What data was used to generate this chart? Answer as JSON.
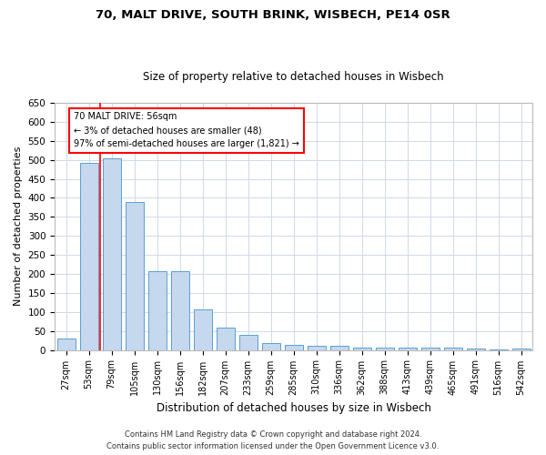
{
  "title_line1": "70, MALT DRIVE, SOUTH BRINK, WISBECH, PE14 0SR",
  "title_line2": "Size of property relative to detached houses in Wisbech",
  "xlabel": "Distribution of detached houses by size in Wisbech",
  "ylabel": "Number of detached properties",
  "categories": [
    "27sqm",
    "53sqm",
    "79sqm",
    "105sqm",
    "130sqm",
    "156sqm",
    "182sqm",
    "207sqm",
    "233sqm",
    "259sqm",
    "285sqm",
    "310sqm",
    "336sqm",
    "362sqm",
    "388sqm",
    "413sqm",
    "439sqm",
    "465sqm",
    "491sqm",
    "516sqm",
    "542sqm"
  ],
  "values": [
    30,
    492,
    505,
    390,
    208,
    208,
    107,
    60,
    40,
    18,
    14,
    12,
    11,
    6,
    5,
    5,
    5,
    5,
    3,
    2,
    4
  ],
  "bar_color": "#c5d8ed",
  "bar_edge_color": "#5a9fd4",
  "annotation_text": "70 MALT DRIVE: 56sqm\n← 3% of detached houses are smaller (48)\n97% of semi-detached houses are larger (1,821) →",
  "annotation_box_color": "white",
  "annotation_box_edge_color": "red",
  "vline_color": "red",
  "vline_bin_index": 1.5,
  "ylim": [
    0,
    650
  ],
  "yticks": [
    0,
    50,
    100,
    150,
    200,
    250,
    300,
    350,
    400,
    450,
    500,
    550,
    600,
    650
  ],
  "background_color": "white",
  "grid_color": "#d0d8e8",
  "footer_line1": "Contains HM Land Registry data © Crown copyright and database right 2024.",
  "footer_line2": "Contains public sector information licensed under the Open Government Licence v3.0."
}
